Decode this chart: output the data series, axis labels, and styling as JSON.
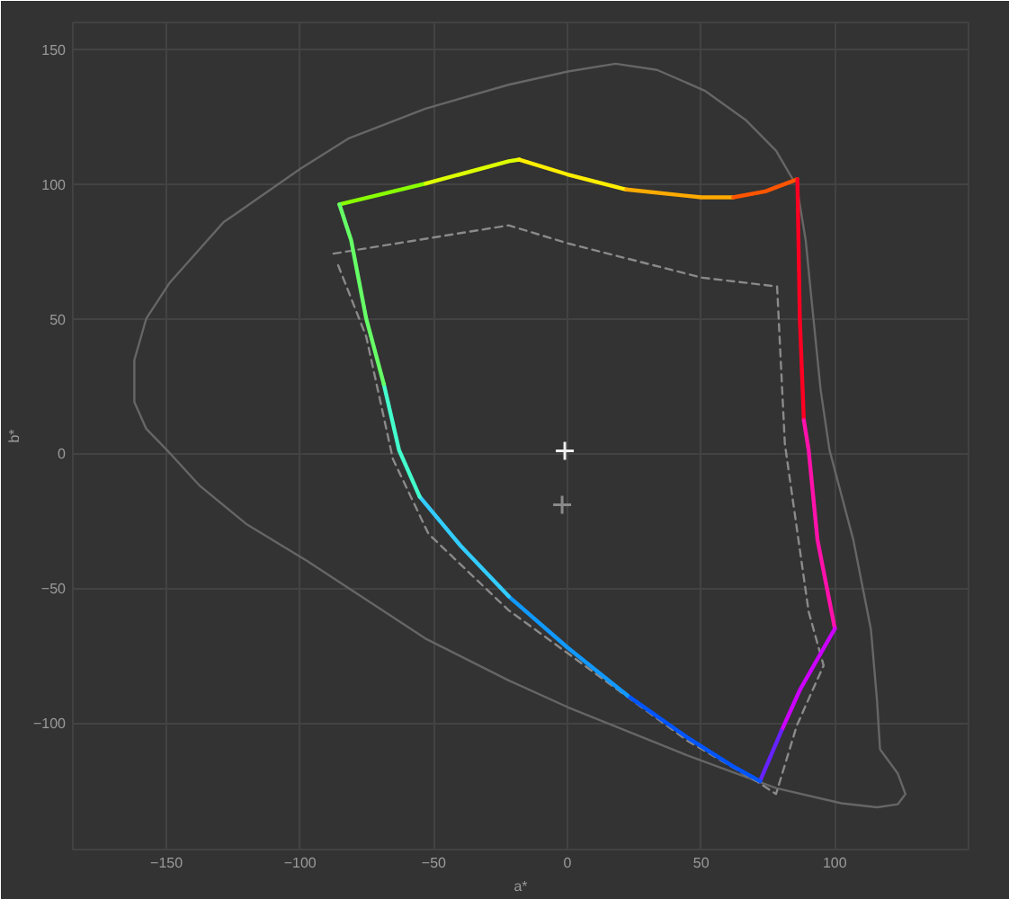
{
  "chart_data": {
    "type": "line",
    "xlabel": "a*",
    "ylabel": "b*",
    "xlim": [
      -185,
      150
    ],
    "ylim": [
      -147,
      160
    ],
    "xticks": [
      -150,
      -100,
      -50,
      0,
      50,
      100
    ],
    "yticks": [
      -100,
      -50,
      0,
      50,
      100,
      150
    ],
    "grid": true,
    "series": [
      {
        "color": "#666666",
        "line_style": "solid",
        "x": [
          85.8,
          89.1,
          91.3,
          94.7,
          98,
          106.9,
          113.5,
          115.8,
          116.9,
          123.5,
          126.4,
          123.5,
          115.8,
          102.4,
          78,
          44.7,
          22.4,
          0.2,
          -22,
          -53.1,
          -75.3,
          -97.5,
          -119.8,
          -137.5,
          -149.8,
          -157.5,
          -162,
          -162,
          -157.5,
          -148.7,
          -128.7,
          -99.8,
          -82,
          -53.1,
          -22,
          0.2,
          18,
          33.5,
          51.3,
          66.9,
          78,
          84
        ],
        "values": [
          99.1,
          79.1,
          56.9,
          23.5,
          1.3,
          -32,
          -65.3,
          -92,
          -109.8,
          -118.7,
          -126.4,
          -130.2,
          -131.3,
          -129.8,
          -124.2,
          -112,
          -103.1,
          -94.2,
          -84.2,
          -68.7,
          -54.2,
          -39.8,
          -26.4,
          -12,
          1.3,
          9.1,
          19.1,
          34.7,
          50.2,
          63.5,
          85.8,
          105.8,
          116.9,
          128,
          136.9,
          141.8,
          144.7,
          142.4,
          134.7,
          123.6,
          112.4,
          102.2
        ]
      },
      {
        "color": "#8a8a8a",
        "line_style": "dashed",
        "x": [
          -87.5,
          -22,
          0.2,
          50.2,
          78.4,
          81.3,
          90.2,
          95.8,
          85.8,
          78,
          71.3,
          44.7,
          0.2,
          -22,
          -52,
          -65.3,
          -75.3,
          -86.5
        ],
        "values": [
          74.2,
          84.7,
          78,
          65.3,
          62,
          3.6,
          -58.7,
          -78.7,
          -100.9,
          -126.4,
          -122,
          -106.5,
          -74.2,
          -58.2,
          -29.8,
          -2,
          43.5,
          71.7
        ]
      },
      {
        "color": "#88ff00",
        "x": [
          -85.3,
          -53
        ],
        "values": [
          92.5,
          100.2
        ]
      },
      {
        "color": "#ddff00",
        "x": [
          -53,
          -22,
          -18
        ],
        "values": [
          100.2,
          108.5,
          109.1
        ]
      },
      {
        "color": "#ffee00",
        "x": [
          -18,
          0,
          22
        ],
        "values": [
          109.1,
          103.6,
          98
        ]
      },
      {
        "color": "#ffaa00",
        "x": [
          22,
          50,
          62
        ],
        "values": [
          98,
          95.1,
          95.1
        ]
      },
      {
        "color": "#ff5500",
        "x": [
          62,
          74,
          86
        ],
        "values": [
          95.1,
          97.3,
          101.8
        ]
      },
      {
        "color": "#ff0022",
        "x": [
          86,
          86.9,
          88.4
        ],
        "values": [
          101.8,
          50.2,
          12.4
        ]
      },
      {
        "color": "#ff11aa",
        "x": [
          88.4,
          90.2,
          93.5,
          100
        ],
        "values": [
          12.4,
          1.3,
          -32,
          -65
        ]
      },
      {
        "color": "#cc00ff",
        "x": [
          100,
          87,
          80
        ],
        "values": [
          -65,
          -87.6,
          -103
        ]
      },
      {
        "color": "#6622ff",
        "x": [
          80,
          72
        ],
        "values": [
          -103,
          -121.6
        ]
      },
      {
        "color": "#0055ff",
        "x": [
          72,
          62.4,
          44.7,
          22.4
        ],
        "values": [
          -121.6,
          -116.4,
          -105.3,
          -89.8
        ]
      },
      {
        "color": "#1199ff",
        "x": [
          22.4,
          0,
          -22
        ],
        "values": [
          -89.8,
          -72,
          -53
        ]
      },
      {
        "color": "#33ccff",
        "x": [
          -22,
          -40,
          -55.3
        ],
        "values": [
          -53,
          -34.2,
          -16
        ]
      },
      {
        "color": "#44ffcc",
        "x": [
          -55.3,
          -63,
          -68.7
        ],
        "values": [
          -16,
          1.3,
          25.8
        ]
      },
      {
        "color": "#66ff66",
        "x": [
          -68.7,
          -75.3,
          -80.9,
          -85.3
        ],
        "values": [
          25.8,
          50.2,
          79.1,
          92.5
        ]
      },
      {
        "type": "scatter",
        "marker": "cross",
        "color": "#eeeeee",
        "x": [
          -1
        ],
        "values": [
          1
        ]
      },
      {
        "type": "scatter",
        "marker": "cross",
        "color": "#8a8a8a",
        "x": [
          -2
        ],
        "values": [
          -19
        ]
      }
    ]
  }
}
